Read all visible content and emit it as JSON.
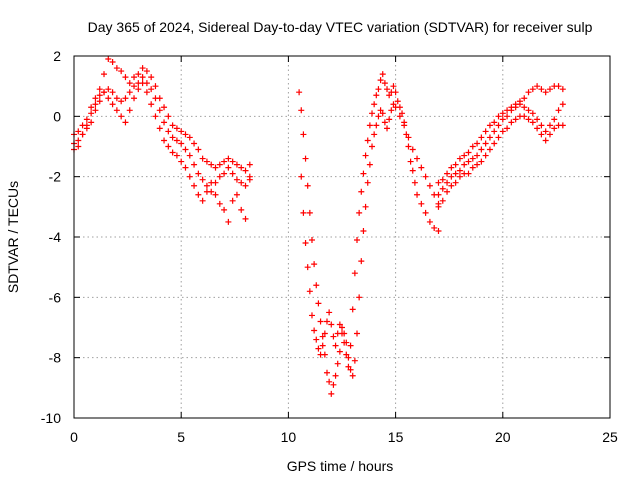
{
  "chart_data": {
    "type": "scatter",
    "title": "Day 365 of 2024, Sidereal Day-to-day VTEC variation (SDTVAR) for receiver sulp",
    "xlabel": "GPS time / hours",
    "ylabel": "SDTVAR / TECUs",
    "xlim": [
      0,
      25
    ],
    "ylim": [
      -10,
      2
    ],
    "xticks": [
      0,
      5,
      10,
      15,
      20,
      25
    ],
    "yticks": [
      -10,
      -8,
      -6,
      -4,
      -2,
      0,
      2
    ],
    "grid": true,
    "marker": "+",
    "color": "#ff0000",
    "series": [
      {
        "name": "SDTVAR",
        "x": [
          0.0,
          0.2,
          0.4,
          0.6,
          0.8,
          1.0,
          1.2,
          1.4,
          1.6,
          1.8,
          2.0,
          2.2,
          2.4,
          2.6,
          2.8,
          3.0,
          3.2,
          3.4,
          3.6,
          3.8,
          4.0,
          4.2,
          4.4,
          4.6,
          4.8,
          5.0,
          5.2,
          5.4,
          5.6,
          5.8,
          6.0,
          6.2,
          6.4,
          6.6,
          6.8,
          7.0,
          7.2,
          7.4,
          7.6,
          7.8,
          8.0,
          8.2,
          0.0,
          0.2,
          0.4,
          0.6,
          0.8,
          1.0,
          1.2,
          1.4,
          1.6,
          1.8,
          2.0,
          2.2,
          2.4,
          2.6,
          2.8,
          3.0,
          3.2,
          3.4,
          3.6,
          3.8,
          4.0,
          4.2,
          4.4,
          4.6,
          4.8,
          5.0,
          5.2,
          5.4,
          5.6,
          5.8,
          6.0,
          6.2,
          6.4,
          6.6,
          6.8,
          7.0,
          7.2,
          7.4,
          7.6,
          7.8,
          8.0,
          8.2,
          0.0,
          0.2,
          0.4,
          0.6,
          0.8,
          1.0,
          1.2,
          1.4,
          1.6,
          1.8,
          2.0,
          2.2,
          2.4,
          2.6,
          2.8,
          3.0,
          3.2,
          3.4,
          3.6,
          3.8,
          4.0,
          4.2,
          4.4,
          4.6,
          4.8,
          5.0,
          5.2,
          5.4,
          5.6,
          5.8,
          6.0,
          6.2,
          6.4,
          6.6,
          6.8,
          7.0,
          7.2,
          7.4,
          7.6,
          7.8,
          8.0,
          8.2,
          10.5,
          10.6,
          10.7,
          10.8,
          10.9,
          11.0,
          11.1,
          11.2,
          11.3,
          11.4,
          11.5,
          11.6,
          11.7,
          11.8,
          11.9,
          12.0,
          12.1,
          12.2,
          12.3,
          12.4,
          12.5,
          12.6,
          12.7,
          12.8,
          12.9,
          13.0,
          13.1,
          13.2,
          13.3,
          13.4,
          13.5,
          13.6,
          13.7,
          13.8,
          13.9,
          14.0,
          14.1,
          14.2,
          14.3,
          14.4,
          14.5,
          14.6,
          14.7,
          14.8,
          14.9,
          15.0,
          15.1,
          15.2,
          15.3,
          15.4,
          15.5,
          15.6,
          15.7,
          15.8,
          15.9,
          16.0,
          16.2,
          16.4,
          16.6,
          16.8,
          17.0,
          10.6,
          10.7,
          10.8,
          10.9,
          11.0,
          11.1,
          11.2,
          11.3,
          11.4,
          11.5,
          11.6,
          11.7,
          11.8,
          11.9,
          12.0,
          12.1,
          12.2,
          12.3,
          12.4,
          12.5,
          12.6,
          12.7,
          12.8,
          12.9,
          13.0,
          13.1,
          13.2,
          13.3,
          13.4,
          13.5,
          13.6,
          13.7,
          13.8,
          13.9,
          14.0,
          14.1,
          14.2,
          14.3,
          14.4,
          14.5,
          14.6,
          14.7,
          14.8,
          14.9,
          15.0,
          15.2,
          15.4,
          15.6,
          15.8,
          16.0,
          16.2,
          16.4,
          16.6,
          16.8,
          17.0,
          17.0,
          17.2,
          17.4,
          17.6,
          17.8,
          18.0,
          18.2,
          18.4,
          18.6,
          18.8,
          19.0,
          19.2,
          19.4,
          19.6,
          19.8,
          20.0,
          20.2,
          20.4,
          20.6,
          20.8,
          21.0,
          21.2,
          21.4,
          21.6,
          21.8,
          22.0,
          22.2,
          22.4,
          22.6,
          22.8,
          17.0,
          17.2,
          17.4,
          17.6,
          17.8,
          18.0,
          18.2,
          18.4,
          18.6,
          18.8,
          19.0,
          19.2,
          19.4,
          19.6,
          19.8,
          20.0,
          20.2,
          20.4,
          20.6,
          20.8,
          21.0,
          21.2,
          21.4,
          21.6,
          21.8,
          22.0,
          22.2,
          22.4,
          22.6,
          22.8,
          17.0,
          17.2,
          17.4,
          17.6,
          17.8,
          18.0,
          18.2,
          18.4,
          18.6,
          18.8,
          19.0,
          19.2,
          19.4,
          19.6,
          19.8,
          20.0,
          20.2,
          20.4,
          20.6,
          20.8,
          21.0,
          21.2,
          21.4,
          21.6,
          21.8,
          22.0,
          22.2,
          22.4,
          22.6,
          22.8
        ],
        "y": [
          -1.1,
          -1.0,
          -0.6,
          -0.3,
          0.1,
          0.4,
          0.9,
          1.4,
          1.9,
          1.8,
          1.6,
          1.5,
          1.3,
          1.1,
          1.3,
          1.4,
          1.6,
          1.5,
          1.3,
          1.0,
          0.6,
          0.3,
          0.0,
          -0.3,
          -0.4,
          -0.5,
          -0.6,
          -0.7,
          -0.9,
          -1.1,
          -1.4,
          -1.5,
          -1.6,
          -1.7,
          -1.6,
          -1.5,
          -1.4,
          -1.5,
          -1.6,
          -1.7,
          -1.8,
          -1.6,
          -0.9,
          -0.8,
          -0.6,
          -0.4,
          -0.2,
          0.2,
          0.5,
          0.8,
          0.9,
          0.8,
          0.6,
          0.5,
          0.6,
          0.8,
          1.0,
          1.1,
          1.3,
          1.1,
          0.9,
          0.6,
          0.2,
          -0.2,
          -0.5,
          -0.7,
          -0.8,
          -0.9,
          -1.1,
          -1.3,
          -1.6,
          -1.9,
          -2.1,
          -2.3,
          -2.5,
          -2.2,
          -2.0,
          -1.9,
          -1.7,
          -1.9,
          -2.1,
          -2.2,
          -2.3,
          -2.1,
          -0.6,
          -0.5,
          -0.3,
          -0.1,
          0.3,
          0.6,
          0.7,
          0.8,
          0.6,
          0.4,
          0.2,
          0.0,
          -0.2,
          0.2,
          0.6,
          0.9,
          1.1,
          0.8,
          0.4,
          0.0,
          -0.4,
          -0.8,
          -1.0,
          -1.2,
          -1.3,
          -1.5,
          -1.7,
          -2.0,
          -2.3,
          -2.6,
          -2.8,
          -2.5,
          -2.2,
          -2.6,
          -2.9,
          -3.1,
          -3.5,
          -2.8,
          -2.6,
          -3.1,
          -3.4,
          -2.0,
          0.8,
          0.2,
          -0.6,
          -1.4,
          -2.3,
          -3.2,
          -4.1,
          -4.9,
          -5.6,
          -6.2,
          -6.8,
          -7.3,
          -7.9,
          -8.5,
          -8.8,
          -9.2,
          -8.9,
          -8.6,
          -8.2,
          -7.8,
          -7.2,
          -7.5,
          -7.9,
          -8.3,
          -7.6,
          -6.4,
          -5.2,
          -4.1,
          -3.2,
          -2.5,
          -1.9,
          -1.3,
          -0.8,
          -0.3,
          0.1,
          0.4,
          0.7,
          0.9,
          1.2,
          1.4,
          1.1,
          0.9,
          0.7,
          0.8,
          1.0,
          0.8,
          0.5,
          0.3,
          0.1,
          -0.2,
          -0.6,
          -1.0,
          -1.5,
          -1.8,
          -2.2,
          -2.6,
          -2.9,
          -3.2,
          -3.5,
          -3.7,
          -3.8,
          -2.0,
          -3.2,
          -4.2,
          -5.0,
          -5.8,
          -6.6,
          -7.1,
          -7.4,
          -7.7,
          -7.9,
          -7.6,
          -7.2,
          -6.8,
          -6.5,
          -6.9,
          -7.3,
          -7.6,
          -7.2,
          -6.9,
          -7.0,
          -7.2,
          -7.5,
          -8.0,
          -8.4,
          -8.6,
          -8.1,
          -7.2,
          -6.0,
          -4.8,
          -3.8,
          -3.0,
          -2.2,
          -1.6,
          -1.0,
          -0.6,
          -0.3,
          0.0,
          0.2,
          0.1,
          -0.2,
          -0.4,
          -0.1,
          0.2,
          0.4,
          0.3,
          0.0,
          -0.3,
          -0.7,
          -1.1,
          -1.4,
          -1.7,
          -2.0,
          -2.3,
          -2.6,
          -2.9,
          -2.6,
          -2.4,
          -2.2,
          -2.0,
          -1.9,
          -1.8,
          -1.6,
          -1.5,
          -1.4,
          -1.3,
          -1.1,
          -0.9,
          -0.7,
          -0.5,
          -0.3,
          -0.1,
          0.0,
          0.2,
          0.3,
          0.5,
          0.6,
          0.8,
          0.9,
          1.0,
          0.9,
          0.8,
          0.9,
          1.0,
          1.0,
          0.9,
          -2.2,
          -2.1,
          -1.9,
          -1.7,
          -1.6,
          -1.4,
          -1.3,
          -1.2,
          -1.0,
          -0.9,
          -0.7,
          -0.5,
          -0.3,
          -0.2,
          0.0,
          0.1,
          0.2,
          0.3,
          0.4,
          0.4,
          0.3,
          0.2,
          0.1,
          -0.1,
          -0.3,
          -0.5,
          -0.3,
          -0.1,
          0.2,
          0.4,
          -3.0,
          -2.8,
          -2.5,
          -2.3,
          -2.2,
          -2.0,
          -1.9,
          -1.9,
          -1.7,
          -1.6,
          -1.5,
          -1.3,
          -1.1,
          -0.9,
          -0.7,
          -0.5,
          -0.4,
          -0.2,
          -0.1,
          0.0,
          0.0,
          -0.1,
          -0.2,
          -0.4,
          -0.6,
          -0.8,
          -0.6,
          -0.4,
          -0.3,
          -0.3
        ]
      }
    ]
  }
}
